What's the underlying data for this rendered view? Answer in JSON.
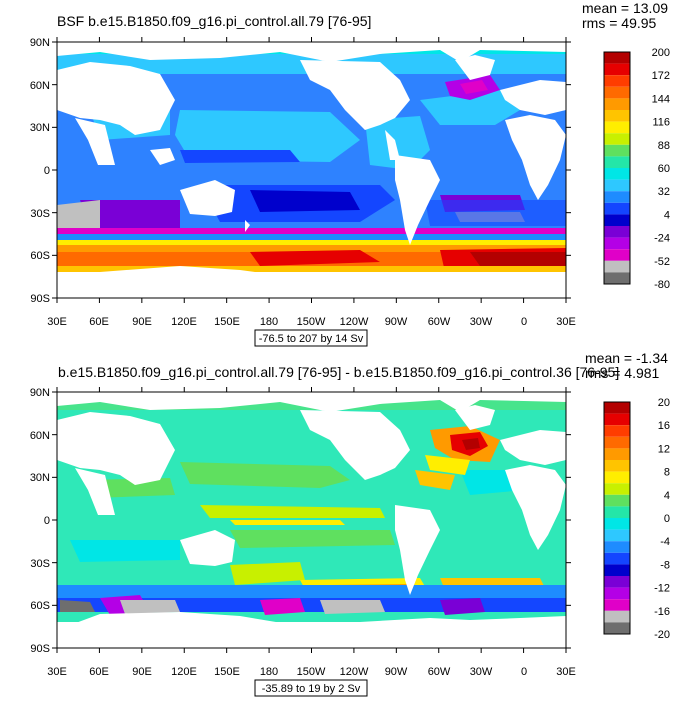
{
  "panels": [
    {
      "title": "BSF b.e15.B1850.f09_g16.pi_control.all.79 [76-95]",
      "mean": "mean = 13.09",
      "rms": "rms = 49.95",
      "range_label": "-76.5 to 207 by 14 Sv",
      "colorbar": {
        "labels": [
          "200",
          "172",
          "144",
          "116",
          "88",
          "60",
          "32",
          "4",
          "-24",
          "-52",
          "-80"
        ],
        "colors": [
          "#b30000",
          "#e60000",
          "#ff3d00",
          "#ff6a00",
          "#ff9a00",
          "#ffc400",
          "#ffee00",
          "#c8f000",
          "#5fe05f",
          "#24e6a8",
          "#00e6e6",
          "#2ec8ff",
          "#1e8cff",
          "#1446ff",
          "#0000cc",
          "#7a00d6",
          "#b400e6",
          "#e000c8",
          "#c0c0c0",
          "#6e6e6e"
        ]
      },
      "ocean_color": "#2e82ff"
    },
    {
      "title": "b.e15.B1850.f09_g16.pi_control.all.79 [76-95] - b.e15.B1850.f09_g16.pi_control.36 [76-95]",
      "mean": "mean = -1.34",
      "rms": "rms = 4.981",
      "range_label": "-35.89 to 19 by 2 Sv",
      "colorbar": {
        "labels": [
          "20",
          "16",
          "12",
          "8",
          "4",
          "0",
          "-4",
          "-8",
          "-12",
          "-16",
          "-20"
        ],
        "colors": [
          "#b30000",
          "#e60000",
          "#ff3d00",
          "#ff6a00",
          "#ff9a00",
          "#ffc400",
          "#ffee00",
          "#c8f000",
          "#5fe05f",
          "#24e6a8",
          "#00e6e6",
          "#2ec8ff",
          "#1e8cff",
          "#1446ff",
          "#0000cc",
          "#7a00d6",
          "#b400e6",
          "#e000c8",
          "#c0c0c0",
          "#6e6e6e"
        ]
      },
      "ocean_color": "#2fe8b8"
    }
  ],
  "lat_labels": [
    "90N",
    "60N",
    "30N",
    "0",
    "30S",
    "60S",
    "90S"
  ],
  "lon_labels": [
    "30E",
    "60E",
    "90E",
    "120E",
    "150E",
    "180",
    "150W",
    "120W",
    "90W",
    "60W",
    "30W",
    "0",
    "30E"
  ]
}
